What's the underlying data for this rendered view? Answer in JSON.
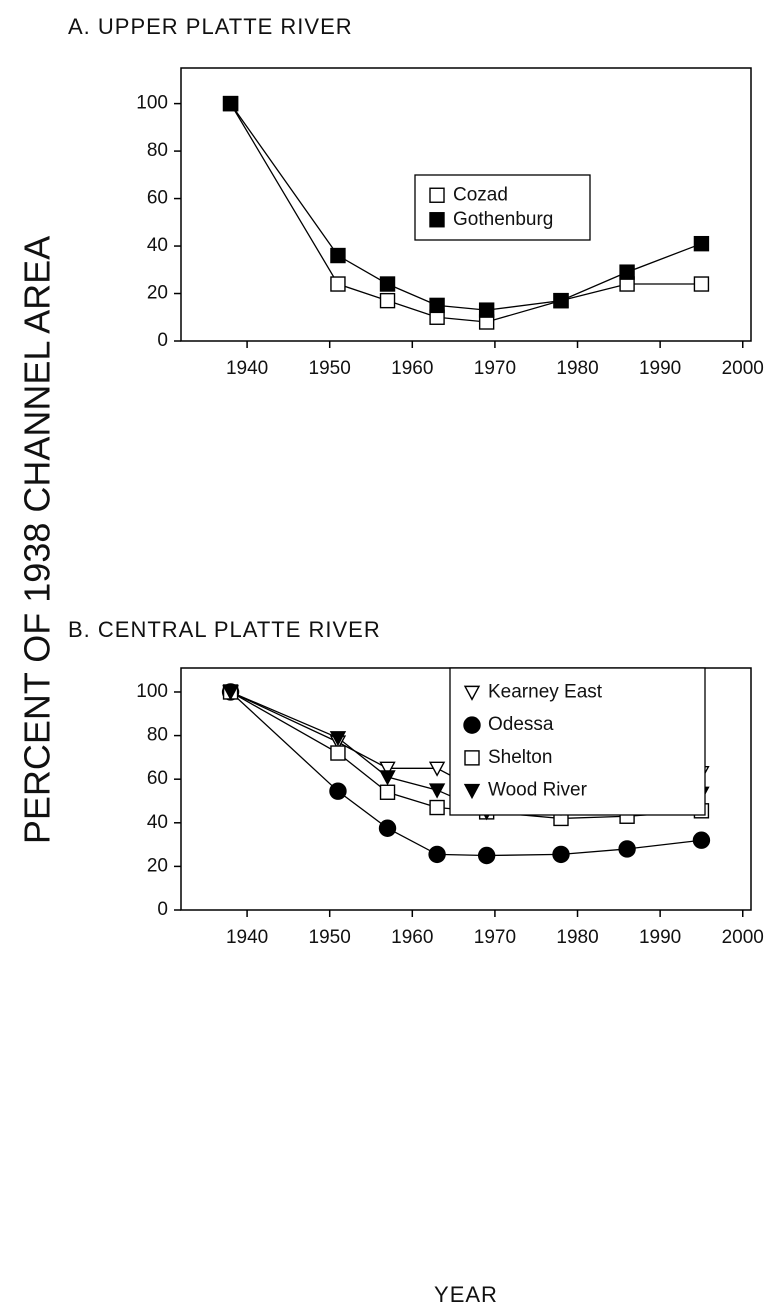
{
  "chart_data": [
    {
      "type": "line",
      "title": "A.  UPPER PLATTE RIVER",
      "ylabel": "PERCENT OF 1938 CHANNEL AREA",
      "x": [
        1938,
        1951,
        1957,
        1963,
        1969,
        1978,
        1986,
        1995
      ],
      "xlim": [
        1932,
        2001
      ],
      "xticks": [
        1940,
        1950,
        1960,
        1970,
        1980,
        1990,
        2000
      ],
      "ylim": [
        0,
        115
      ],
      "yticks": [
        0,
        20,
        40,
        60,
        80,
        100
      ],
      "series": [
        {
          "name": "Cozad",
          "color": "#000000",
          "marker": "square",
          "filled": false,
          "values": [
            100,
            24,
            17,
            10,
            8,
            17,
            24,
            24
          ]
        },
        {
          "name": "Gothenburg",
          "color": "#000000",
          "marker": "square",
          "filled": true,
          "values": [
            100,
            36,
            24,
            15,
            13,
            17,
            29,
            41
          ]
        }
      ]
    },
    {
      "type": "line",
      "title": "B.  CENTRAL PLATTE RIVER",
      "xlabel": "YEAR",
      "x": [
        1938,
        1951,
        1957,
        1963,
        1969,
        1978,
        1986,
        1995
      ],
      "xlim": [
        1932,
        2001
      ],
      "xticks": [
        1940,
        1950,
        1960,
        1970,
        1980,
        1990,
        2000
      ],
      "ylim": [
        0,
        111
      ],
      "yticks": [
        0,
        20,
        40,
        60,
        80,
        100
      ],
      "legend": "upper right",
      "series": [
        {
          "name": "Kearney East",
          "color": "#000000",
          "marker": "triangle-down",
          "filled": false,
          "values": [
            100,
            77,
            65,
            65,
            53,
            54,
            61,
            63
          ]
        },
        {
          "name": "Odessa",
          "color": "#000000",
          "marker": "circle",
          "filled": true,
          "values": [
            100,
            54.5,
            37.5,
            25.5,
            25,
            25.5,
            28,
            32
          ]
        },
        {
          "name": "Shelton",
          "color": "#000000",
          "marker": "square",
          "filled": false,
          "values": [
            100,
            72,
            54,
            47,
            45,
            42,
            43,
            45.5
          ]
        },
        {
          "name": "Wood River",
          "color": "#000000",
          "marker": "triangle-down",
          "filled": true,
          "values": [
            100,
            79,
            61,
            55,
            45,
            47,
            52,
            53.5
          ]
        }
      ]
    }
  ]
}
